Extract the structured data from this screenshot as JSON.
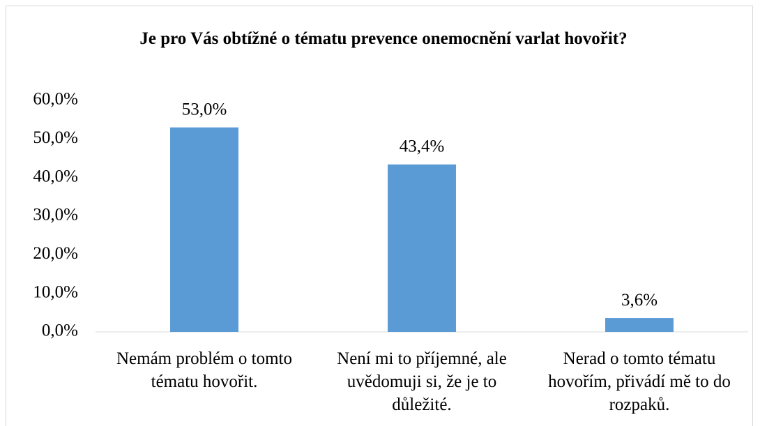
{
  "chart_data": {
    "type": "bar",
    "title": "Je pro Vás obtížné o tématu prevence onemocnění varlat hovořit?",
    "categories": [
      "Nemám problém o tomto tématu hovořit.",
      "Není mi to příjemné, ale uvědomuji si, že je to důležité.",
      "Nerad o tomto tématu hovořím, přivádí mě to do rozpaků."
    ],
    "values": [
      53.0,
      43.4,
      3.6
    ],
    "value_labels": [
      "53,0%",
      "43,4%",
      "3,6%"
    ],
    "color": "#5b9bd5",
    "ylim": [
      0,
      60
    ],
    "yticks": [
      {
        "value": 0,
        "label": "0,0%"
      },
      {
        "value": 10,
        "label": "10,0%"
      },
      {
        "value": 20,
        "label": "20,0%"
      },
      {
        "value": 30,
        "label": "30,0%"
      },
      {
        "value": 40,
        "label": "40,0%"
      },
      {
        "value": 50,
        "label": "50,0%"
      },
      {
        "value": 60,
        "label": "60,0%"
      }
    ],
    "grid": false
  }
}
